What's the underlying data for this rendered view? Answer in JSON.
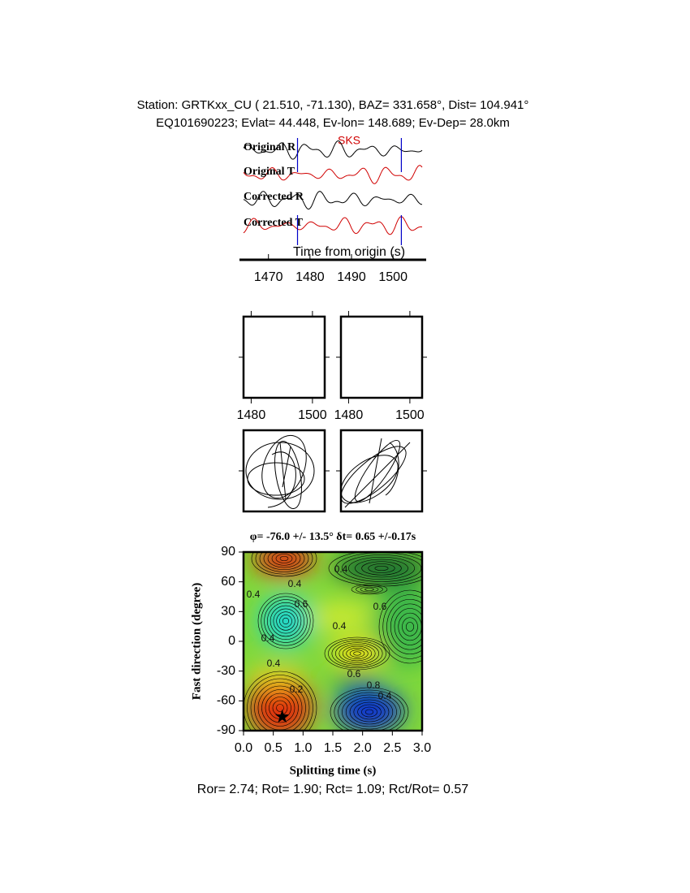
{
  "header": {
    "line1": "Station: GRTKxx_CU (  21.510,  -71.130), BAZ=  331.658°, Dist=  104.941°",
    "line2": "EQ101690223; Evlat=  44.448, Ev-lon= 148.689; Ev-Dep= 28.0km"
  },
  "chart_data": [
    {
      "type": "waveform",
      "trace_labels": [
        "Original R",
        "Original T",
        "Corrected R",
        "Corrected T"
      ],
      "trace_colors": [
        "#000000",
        "#d00000",
        "#000000",
        "#d00000"
      ],
      "phase_label": "SKS",
      "xlabel": "Time from origin (s)",
      "xlim": [
        1464,
        1507
      ],
      "xticks": [
        1470,
        1480,
        1490,
        1500
      ],
      "window_marks": [
        1477,
        1502
      ],
      "window_color": "#0000c8"
    },
    {
      "type": "window",
      "xlim": [
        1477.5,
        1504
      ],
      "xticks": [
        1480,
        1500
      ]
    },
    {
      "type": "window",
      "xlim": [
        1477.5,
        1504
      ],
      "xticks": [
        1480,
        1500
      ]
    },
    {
      "type": "contour",
      "title": "φ= -76.0 +/- 13.5° δt= 0.65 +/-0.17s",
      "xlabel": "Splitting time (s)",
      "ylabel": "Fast direction (degree)",
      "xlim": [
        0,
        3
      ],
      "xticks": [
        {
          "value": 0,
          "label": "0.0"
        },
        {
          "value": 0.5,
          "label": "0.5"
        },
        {
          "value": 1,
          "label": "1.0"
        },
        {
          "value": 1.5,
          "label": "1.5"
        },
        {
          "value": 2,
          "label": "2.0"
        },
        {
          "value": 2.5,
          "label": "2.5"
        },
        {
          "value": 3,
          "label": "3.0"
        }
      ],
      "ylim": [
        -90,
        90
      ],
      "yticks": [
        -90,
        -60,
        -30,
        0,
        30,
        60,
        90
      ],
      "best": {
        "dt": 0.65,
        "phi": -76
      },
      "contour_labels": [
        0.4,
        0.4,
        0.6,
        0.4,
        0.4,
        0.4,
        0.6,
        0.2,
        0.4,
        0.6,
        0.8,
        0.4
      ]
    }
  ],
  "footer": "Ror= 2.74; Rot= 1.90; Rct= 1.09; Rct/Rot= 0.57"
}
